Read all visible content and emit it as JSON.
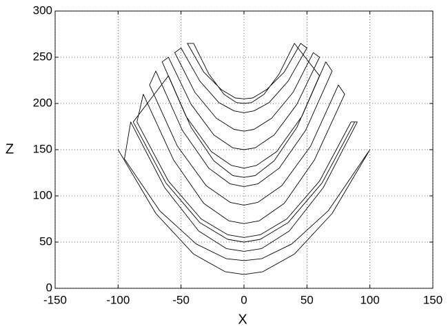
{
  "chart_data": {
    "type": "line",
    "x_label": "X",
    "y_label": "Z",
    "color": "#000000",
    "x": [
      -100,
      -70,
      -40,
      -15,
      0,
      15,
      40,
      70,
      100,
      95,
      67,
      38,
      14,
      0,
      -14,
      -38,
      -67,
      -95,
      -90,
      -63,
      -36,
      -14,
      0,
      14,
      36,
      63,
      90,
      85,
      60,
      34,
      13,
      0,
      -13,
      -34,
      -60,
      -85,
      -80,
      -56,
      -32,
      -12,
      0,
      12,
      32,
      56,
      80,
      75,
      53,
      30,
      11,
      0,
      -11,
      -30,
      -53,
      -75,
      -70,
      -49,
      -28,
      -11,
      0,
      11,
      28,
      49,
      70,
      65,
      46,
      26,
      10,
      0,
      -10,
      -26,
      -46,
      -65,
      -60,
      -42,
      -24,
      -9,
      0,
      9,
      24,
      42,
      60,
      55,
      39,
      22,
      8,
      0,
      -8,
      -22,
      -39,
      -55,
      -50,
      -35,
      -20,
      -8,
      0,
      8,
      20,
      35,
      50,
      45,
      32,
      18,
      7,
      0,
      -7,
      -18,
      -32,
      -45,
      -40,
      -28,
      -16,
      -6,
      0,
      6,
      16,
      28,
      40,
      60,
      42,
      24,
      9,
      0,
      -9,
      -24,
      -42,
      -60,
      -88,
      -62,
      -35,
      -13,
      0,
      13,
      35,
      62,
      88
    ],
    "values": [
      150,
      81,
      37,
      18,
      15,
      18,
      37,
      81,
      150,
      140,
      84,
      48,
      32,
      30,
      32,
      48,
      84,
      140,
      180,
      109,
      62,
      43,
      40,
      43,
      62,
      109,
      180,
      180,
      116,
      75,
      58,
      55,
      58,
      75,
      116,
      180,
      210,
      139,
      92,
      73,
      70,
      73,
      92,
      139,
      210,
      220,
      154,
      111,
      93,
      90,
      93,
      111,
      154,
      220,
      235,
      171,
      130,
      113,
      110,
      113,
      130,
      171,
      235,
      245,
      186,
      148,
      133,
      130,
      133,
      148,
      186,
      245,
      250,
      199,
      166,
      152,
      150,
      152,
      166,
      199,
      250,
      255,
      212,
      184,
      172,
      170,
      172,
      184,
      212,
      255,
      260,
      224,
      201,
      192,
      190,
      192,
      201,
      224,
      260,
      265,
      234,
      215,
      206,
      205,
      206,
      215,
      234,
      265,
      265,
      232,
      210,
      201,
      200,
      201,
      210,
      232,
      265,
      230,
      174,
      138,
      122,
      120,
      122,
      138,
      174,
      230,
      180,
      114,
      71,
      53,
      50,
      53,
      71,
      114,
      180
    ],
    "xlim": [
      -150,
      150
    ],
    "xticks": [
      -150,
      -100,
      -50,
      0,
      50,
      100,
      150
    ],
    "ylim": [
      0,
      300
    ],
    "yticks": [
      0,
      50,
      100,
      150,
      200,
      250,
      300
    ],
    "grid": true
  }
}
